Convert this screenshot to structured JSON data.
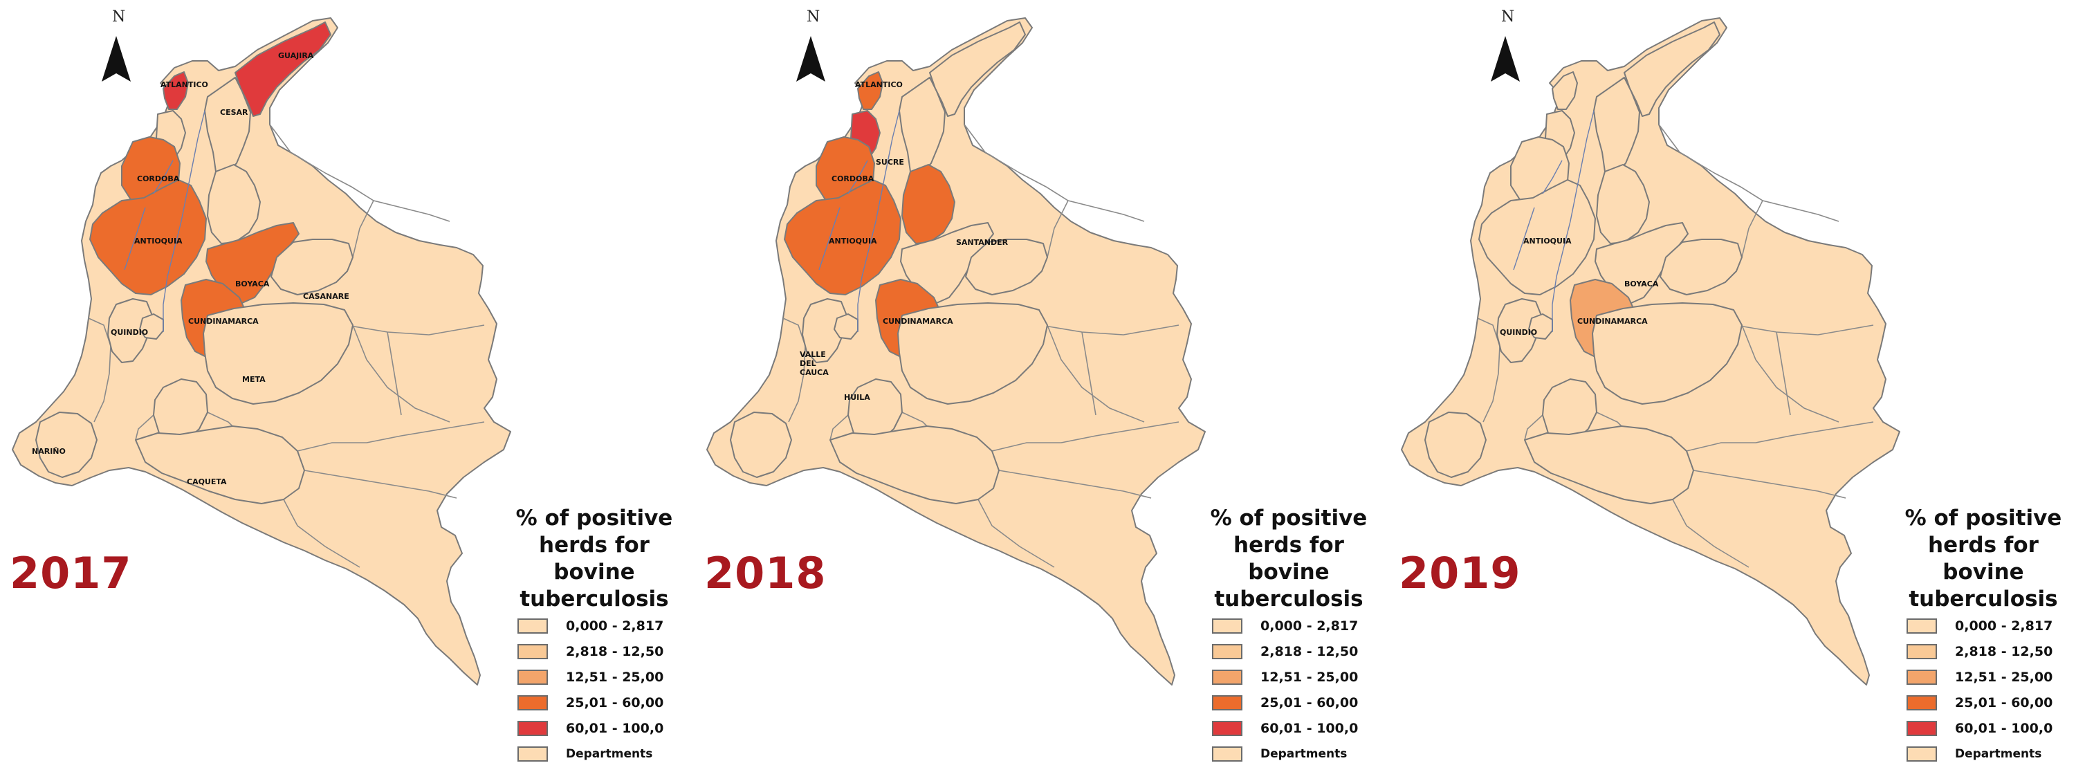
{
  "colors": {
    "c0": "#fddcb4",
    "c1": "#f9c996",
    "c2": "#f3a56b",
    "c3": "#ec6c2c",
    "c4": "#e03a3c",
    "departments": "#fddcb4",
    "year_text": "#a8191f"
  },
  "north": {
    "letter": "N",
    "icon": "north-arrow-icon"
  },
  "legend": {
    "title_lines": [
      "% of positive",
      "herds for",
      "bovine",
      "tuberculosis"
    ],
    "items": [
      {
        "label": "0,000 - 2,817",
        "color": "#fddcb4"
      },
      {
        "label": "2,818 - 12,50",
        "color": "#f9c996"
      },
      {
        "label": "12,51 - 25,00",
        "color": "#f3a56b"
      },
      {
        "label": "25,01 - 60,00",
        "color": "#ec6c2c"
      },
      {
        "label": "60,01 - 100,0",
        "color": "#e03a3c"
      },
      {
        "label": "Departments",
        "color": "#fddcb4"
      }
    ]
  },
  "maps": [
    {
      "year": "2017",
      "departments": {
        "GUAJIRA": {
          "label": "GUAJIRA",
          "class": 4
        },
        "ATLANTICO": {
          "label": "ATLANTICO",
          "class": 4
        },
        "CESAR": {
          "label": "CESAR",
          "class": 0
        },
        "SUCRE": {
          "label": "",
          "class": 0
        },
        "CORDOBA": {
          "label": "CORDOBA",
          "class": 3
        },
        "ANTIOQUIA": {
          "label": "ANTIOQUIA",
          "class": 3
        },
        "SANTANDER": {
          "label": "",
          "class": 0
        },
        "BOYACA": {
          "label": "BOYACA",
          "class": 3
        },
        "CUNDINAMARCA": {
          "label": "CUNDINAMARCA",
          "class": 3
        },
        "CASANARE": {
          "label": "CASANARE",
          "class": 0
        },
        "QUINDIO": {
          "label": "QUINDIO",
          "class": 0
        },
        "VALLE": {
          "label": "",
          "class": 0
        },
        "HUILA": {
          "label": "",
          "class": 0
        },
        "META": {
          "label": "META",
          "class": 0
        },
        "NARINO": {
          "label": "NARIÑO",
          "class": 0
        },
        "CAQUETA": {
          "label": "CAQUETA",
          "class": 0
        }
      }
    },
    {
      "year": "2018",
      "departments": {
        "GUAJIRA": {
          "label": "",
          "class": 0
        },
        "ATLANTICO": {
          "label": "ATLANTICO",
          "class": 3
        },
        "CESAR": {
          "label": "",
          "class": 0
        },
        "SUCRE": {
          "label": "SUCRE",
          "class": 4
        },
        "CORDOBA": {
          "label": "CORDOBA",
          "class": 3
        },
        "ANTIOQUIA": {
          "label": "ANTIOQUIA",
          "class": 3
        },
        "SANTANDER": {
          "label": "SANTANDER",
          "class": 3
        },
        "BOYACA": {
          "label": "",
          "class": 0
        },
        "CUNDINAMARCA": {
          "label": "CUNDINAMARCA",
          "class": 3
        },
        "CASANARE": {
          "label": "",
          "class": 0
        },
        "QUINDIO": {
          "label": "",
          "class": 0
        },
        "VALLE": {
          "label": "VALLE DEL CAUCA",
          "class": 0
        },
        "HUILA": {
          "label": "HUILA",
          "class": 0
        },
        "META": {
          "label": "",
          "class": 0
        },
        "NARINO": {
          "label": "",
          "class": 0
        },
        "CAQUETA": {
          "label": "",
          "class": 0
        }
      }
    },
    {
      "year": "2019",
      "departments": {
        "GUAJIRA": {
          "label": "",
          "class": 0
        },
        "ATLANTICO": {
          "label": "",
          "class": 0
        },
        "CESAR": {
          "label": "",
          "class": 0
        },
        "SUCRE": {
          "label": "",
          "class": 0
        },
        "CORDOBA": {
          "label": "",
          "class": 0
        },
        "ANTIOQUIA": {
          "label": "ANTIOQUIA",
          "class": 0
        },
        "SANTANDER": {
          "label": "",
          "class": 0
        },
        "BOYACA": {
          "label": "BOYACA",
          "class": 0
        },
        "CUNDINAMARCA": {
          "label": "CUNDINAMARCA",
          "class": 2
        },
        "CASANARE": {
          "label": "",
          "class": 0
        },
        "QUINDIO": {
          "label": "QUINDIO",
          "class": 0
        },
        "VALLE": {
          "label": "",
          "class": 0
        },
        "HUILA": {
          "label": "",
          "class": 0
        },
        "META": {
          "label": "",
          "class": 0
        },
        "NARINO": {
          "label": "",
          "class": 0
        },
        "CAQUETA": {
          "label": "",
          "class": 0
        }
      }
    }
  ]
}
